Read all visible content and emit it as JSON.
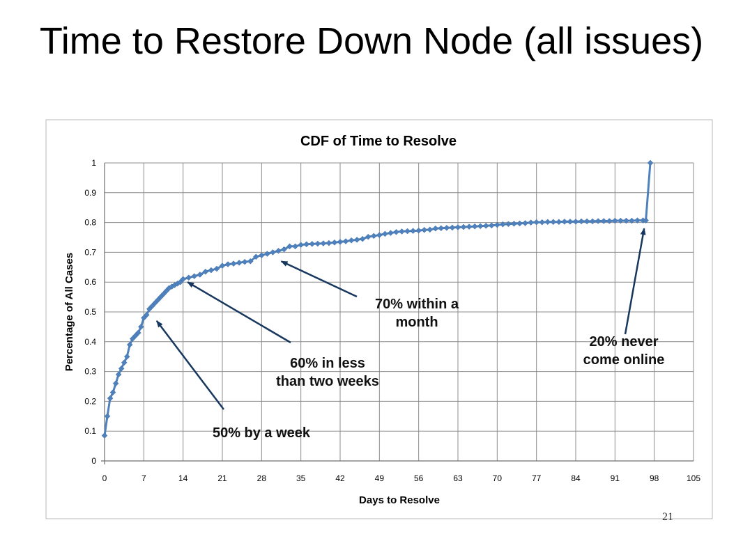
{
  "slide": {
    "title": "Time to Restore Down Node (all issues)",
    "page_number": "21"
  },
  "chart_data": {
    "type": "line",
    "title": "CDF of Time to Resolve",
    "xlabel": "Days to Resolve",
    "ylabel": "Percentage of All Cases",
    "xlim": [
      0,
      105
    ],
    "ylim": [
      0,
      1
    ],
    "x_ticks": [
      "0",
      "7",
      "14",
      "21",
      "28",
      "35",
      "42",
      "49",
      "56",
      "63",
      "70",
      "77",
      "84",
      "91",
      "98",
      "105"
    ],
    "y_ticks": [
      "0",
      "0.1",
      "0.2",
      "0.3",
      "0.4",
      "0.5",
      "0.6",
      "0.7",
      "0.8",
      "0.9",
      "1"
    ],
    "grid": true,
    "legend": "none",
    "series_color": "#4f81bd",
    "marker": "diamond",
    "series": [
      {
        "points": [
          [
            0,
            0.085
          ],
          [
            0.5,
            0.15
          ],
          [
            1,
            0.21
          ],
          [
            1.5,
            0.23
          ],
          [
            2,
            0.26
          ],
          [
            2.5,
            0.29
          ],
          [
            3,
            0.31
          ],
          [
            3.5,
            0.33
          ],
          [
            4,
            0.35
          ],
          [
            4.5,
            0.39
          ],
          [
            5,
            0.41
          ],
          [
            5.5,
            0.42
          ],
          [
            6,
            0.43
          ],
          [
            6.5,
            0.45
          ],
          [
            7,
            0.48
          ],
          [
            7.5,
            0.49
          ],
          [
            8,
            0.51
          ],
          [
            8.5,
            0.52
          ],
          [
            9,
            0.53
          ],
          [
            9.5,
            0.54
          ],
          [
            10,
            0.55
          ],
          [
            10.5,
            0.56
          ],
          [
            11,
            0.57
          ],
          [
            11.5,
            0.58
          ],
          [
            12,
            0.585
          ],
          [
            12.5,
            0.59
          ],
          [
            13,
            0.595
          ],
          [
            13.5,
            0.6
          ],
          [
            14,
            0.61
          ],
          [
            15,
            0.615
          ],
          [
            16,
            0.62
          ],
          [
            17,
            0.625
          ],
          [
            18,
            0.635
          ],
          [
            19,
            0.64
          ],
          [
            20,
            0.645
          ],
          [
            21,
            0.655
          ],
          [
            22,
            0.66
          ],
          [
            23,
            0.662
          ],
          [
            24,
            0.665
          ],
          [
            25,
            0.668
          ],
          [
            26,
            0.67
          ],
          [
            27,
            0.685
          ],
          [
            28,
            0.69
          ],
          [
            29,
            0.695
          ],
          [
            30,
            0.7
          ],
          [
            31,
            0.705
          ],
          [
            32,
            0.71
          ],
          [
            33,
            0.72
          ],
          [
            34,
            0.72
          ],
          [
            35,
            0.725
          ],
          [
            36,
            0.727
          ],
          [
            37,
            0.728
          ],
          [
            38,
            0.729
          ],
          [
            39,
            0.73
          ],
          [
            40,
            0.731
          ],
          [
            41,
            0.733
          ],
          [
            42,
            0.735
          ],
          [
            43,
            0.737
          ],
          [
            44,
            0.74
          ],
          [
            45,
            0.742
          ],
          [
            46,
            0.745
          ],
          [
            47,
            0.752
          ],
          [
            48,
            0.755
          ],
          [
            49,
            0.758
          ],
          [
            50,
            0.762
          ],
          [
            51,
            0.765
          ],
          [
            52,
            0.768
          ],
          [
            53,
            0.77
          ],
          [
            54,
            0.771
          ],
          [
            55,
            0.772
          ],
          [
            56,
            0.773
          ],
          [
            57,
            0.775
          ],
          [
            58,
            0.776
          ],
          [
            59,
            0.78
          ],
          [
            60,
            0.781
          ],
          [
            61,
            0.782
          ],
          [
            62,
            0.783
          ],
          [
            63,
            0.784
          ],
          [
            64,
            0.785
          ],
          [
            65,
            0.786
          ],
          [
            66,
            0.787
          ],
          [
            67,
            0.788
          ],
          [
            68,
            0.789
          ],
          [
            69,
            0.79
          ],
          [
            70,
            0.792
          ],
          [
            71,
            0.794
          ],
          [
            72,
            0.795
          ],
          [
            73,
            0.796
          ],
          [
            74,
            0.797
          ],
          [
            75,
            0.798
          ],
          [
            76,
            0.8
          ],
          [
            77,
            0.801
          ],
          [
            78,
            0.801
          ],
          [
            79,
            0.802
          ],
          [
            80,
            0.802
          ],
          [
            81,
            0.802
          ],
          [
            82,
            0.803
          ],
          [
            83,
            0.803
          ],
          [
            84,
            0.803
          ],
          [
            85,
            0.804
          ],
          [
            86,
            0.804
          ],
          [
            87,
            0.804
          ],
          [
            88,
            0.805
          ],
          [
            89,
            0.805
          ],
          [
            90,
            0.805
          ],
          [
            91,
            0.806
          ],
          [
            92,
            0.806
          ],
          [
            93,
            0.806
          ],
          [
            94,
            0.806
          ],
          [
            95,
            0.807
          ],
          [
            96,
            0.807
          ],
          [
            96.5,
            0.807
          ],
          [
            97.3,
            1.0
          ]
        ]
      }
    ],
    "annotations": [
      {
        "lines": [
          "50% by a week"
        ],
        "arrow_to": [
          9.3,
          0.47
        ]
      },
      {
        "lines": [
          "60% in less",
          "than two weeks"
        ],
        "arrow_to": [
          14.8,
          0.6
        ]
      },
      {
        "lines": [
          "70% within a",
          "month"
        ],
        "arrow_to": [
          31.5,
          0.67
        ]
      },
      {
        "lines": [
          "20% never",
          "come online"
        ],
        "arrow_to": [
          96.2,
          0.78
        ]
      }
    ]
  }
}
